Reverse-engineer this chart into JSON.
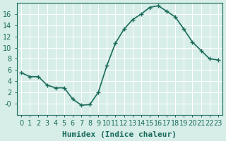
{
  "x": [
    0,
    1,
    2,
    3,
    4,
    5,
    6,
    7,
    8,
    9,
    10,
    11,
    12,
    13,
    14,
    15,
    16,
    17,
    18,
    19,
    20,
    21,
    22,
    23
  ],
  "y": [
    5.5,
    4.8,
    4.8,
    3.3,
    2.8,
    2.8,
    0.8,
    -0.3,
    -0.2,
    2.0,
    6.8,
    10.8,
    13.3,
    15.0,
    16.0,
    17.2,
    17.5,
    16.5,
    15.5,
    13.3,
    11.0,
    9.5,
    8.0,
    7.8
  ],
  "line_color": "#1a6b5a",
  "bg_color": "#d6ede8",
  "grid_color": "#ffffff",
  "xlabel": "Humidex (Indice chaleur)",
  "ylim": [
    -2,
    18
  ],
  "xlim": [
    -0.5,
    23.5
  ],
  "yticks": [
    0,
    2,
    4,
    6,
    8,
    10,
    12,
    14,
    16
  ],
  "ytick_labels": [
    "-0",
    "2",
    "4",
    "6",
    "8",
    "10",
    "12",
    "14",
    "16"
  ],
  "xticks": [
    0,
    1,
    2,
    3,
    4,
    5,
    6,
    7,
    8,
    9,
    10,
    11,
    12,
    13,
    14,
    15,
    16,
    17,
    18,
    19,
    20,
    21,
    22,
    23
  ],
  "markersize": 5,
  "linewidth": 1.2,
  "xlabel_fontsize": 8,
  "tick_fontsize": 7
}
